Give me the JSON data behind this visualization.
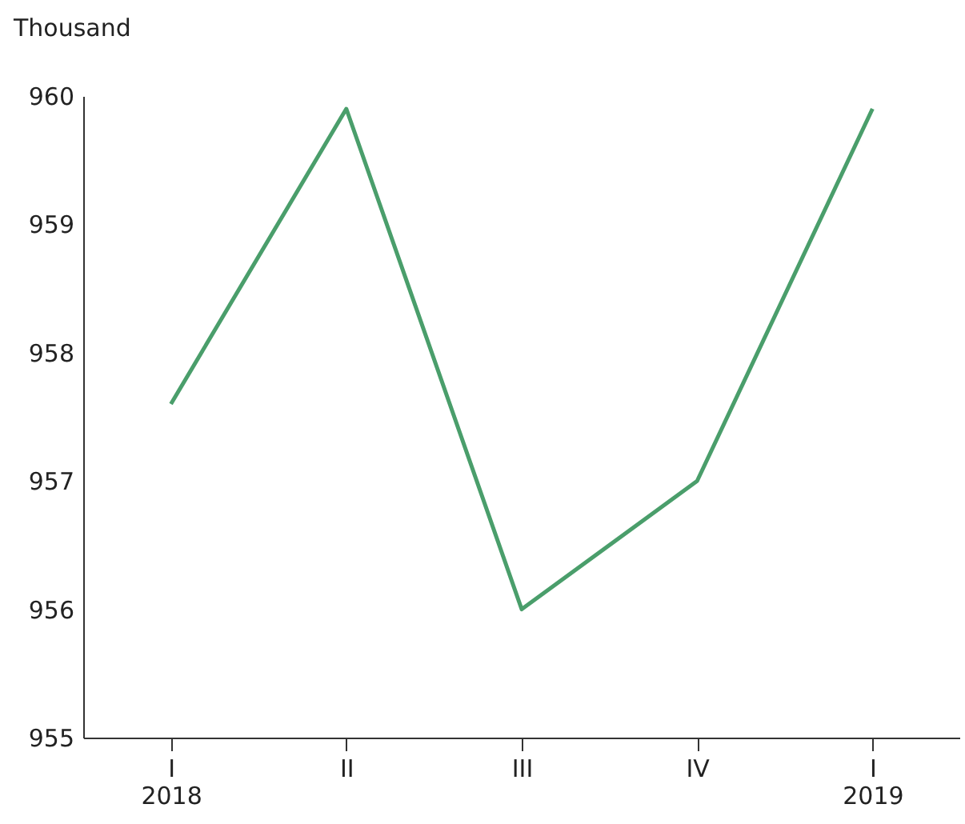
{
  "chart_data": {
    "type": "line",
    "ylabel": "Thousand",
    "categories": [
      "I\n2018",
      "II",
      "III",
      "IV",
      "I\n2019"
    ],
    "series": [
      {
        "color": "#4a9e6b",
        "values": [
          957.6,
          959.9,
          956.0,
          957.0,
          959.9
        ]
      }
    ],
    "ylim": [
      955,
      960
    ],
    "yticks": [
      955,
      956,
      957,
      958,
      959,
      960
    ],
    "grid": false,
    "legend": false,
    "marker": "none",
    "line_style": "solid"
  }
}
